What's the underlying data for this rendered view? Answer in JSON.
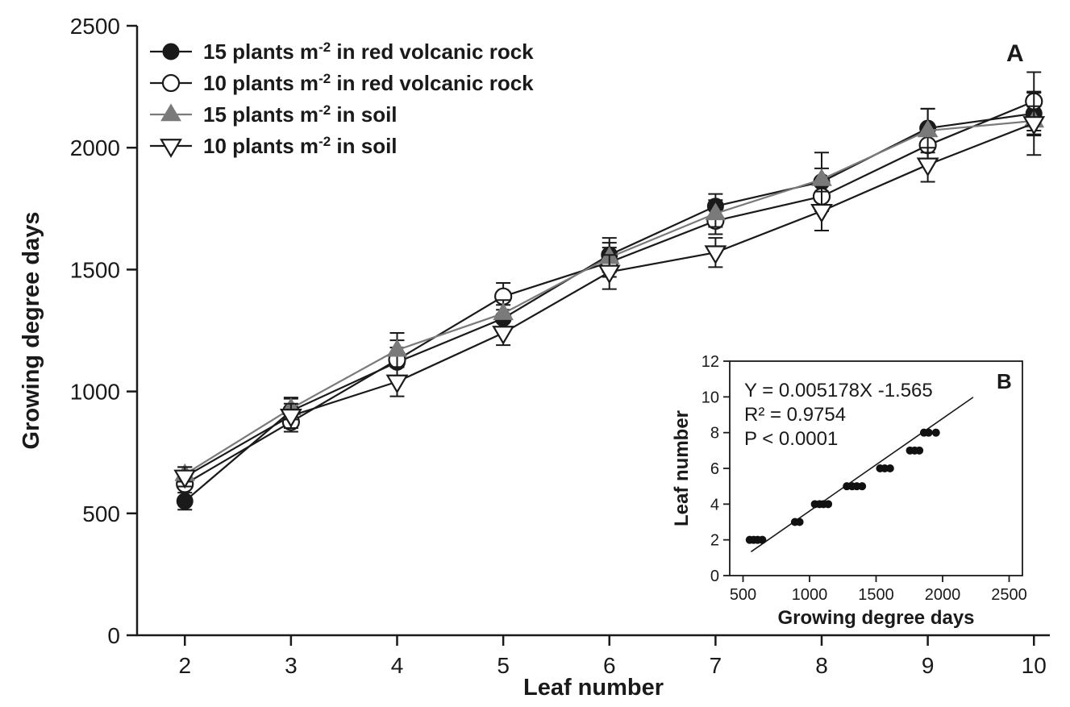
{
  "figure": {
    "panel_a_label": "A",
    "panel_b_label": "B"
  },
  "chart_data": [
    {
      "id": "A",
      "type": "line",
      "panel_label": "A",
      "xlabel": "Leaf number",
      "ylabel": "Growing degree days",
      "x": [
        2,
        3,
        4,
        5,
        6,
        7,
        8,
        9,
        10
      ],
      "xticks": [
        2,
        3,
        4,
        5,
        6,
        7,
        8,
        9,
        10
      ],
      "ylim": [
        0,
        2500
      ],
      "yticks": [
        0,
        500,
        1000,
        1500,
        2000,
        2500
      ],
      "legend_position": "top-left",
      "grid": false,
      "series": [
        {
          "label_prefix": "15 plants m",
          "label_sup": "-2",
          "label_suffix": " in red volcanic rock",
          "marker": "circle-filled",
          "color": "#1a1a1a",
          "values": [
            550,
            920,
            1120,
            1300,
            1560,
            1760,
            1860,
            2080,
            2140
          ],
          "errors": [
            35,
            50,
            60,
            55,
            70,
            50,
            55,
            80,
            85
          ]
        },
        {
          "label_prefix": "10 plants m",
          "label_sup": "-2",
          "label_suffix": " in red volcanic rock",
          "marker": "circle-open",
          "color": "#1a1a1a",
          "values": [
            620,
            875,
            1130,
            1390,
            1530,
            1700,
            1800,
            2010,
            2190
          ],
          "errors": [
            55,
            40,
            80,
            55,
            60,
            55,
            60,
            70,
            120
          ]
        },
        {
          "label_prefix": "15 plants m",
          "label_sup": "-2",
          "label_suffix": " in soil",
          "marker": "triangle-up-filled",
          "color": "#7a7a7a",
          "values": [
            660,
            930,
            1170,
            1320,
            1550,
            1730,
            1870,
            2070,
            2110
          ],
          "errors": [
            30,
            45,
            70,
            55,
            60,
            55,
            110,
            90,
            60
          ]
        },
        {
          "label_prefix": "10 plants m",
          "label_sup": "-2",
          "label_suffix": " in soil",
          "marker": "triangle-down-open",
          "color": "#1a1a1a",
          "values": [
            650,
            900,
            1040,
            1240,
            1490,
            1570,
            1740,
            1930,
            2100
          ],
          "errors": [
            40,
            50,
            60,
            50,
            70,
            60,
            80,
            70,
            130
          ]
        }
      ]
    },
    {
      "id": "B",
      "type": "scatter",
      "panel_label": "B",
      "xlabel": "Growing degree days",
      "ylabel": "Leaf number",
      "xlim": [
        400,
        2600
      ],
      "xticks": [
        500,
        1000,
        1500,
        2000,
        2500
      ],
      "ylim": [
        0,
        12
      ],
      "yticks": [
        0,
        2,
        4,
        6,
        8,
        10,
        12
      ],
      "annotation": [
        "Y = 0.005178X -1.565",
        "R² = 0.9754",
        "P < 0.0001"
      ],
      "fit": {
        "slope": 0.005178,
        "intercept": -1.565,
        "x_start": 560,
        "x_end": 2230
      },
      "points": [
        [
          550,
          2
        ],
        [
          580,
          2
        ],
        [
          610,
          2
        ],
        [
          645,
          2
        ],
        [
          890,
          3
        ],
        [
          925,
          3
        ],
        [
          1040,
          4
        ],
        [
          1075,
          4
        ],
        [
          1105,
          4
        ],
        [
          1140,
          4
        ],
        [
          1280,
          5
        ],
        [
          1320,
          5
        ],
        [
          1355,
          5
        ],
        [
          1395,
          5
        ],
        [
          1530,
          6
        ],
        [
          1565,
          6
        ],
        [
          1605,
          6
        ],
        [
          1755,
          7
        ],
        [
          1790,
          7
        ],
        [
          1825,
          7
        ],
        [
          1860,
          8
        ],
        [
          1895,
          8
        ],
        [
          1950,
          8
        ]
      ]
    }
  ]
}
